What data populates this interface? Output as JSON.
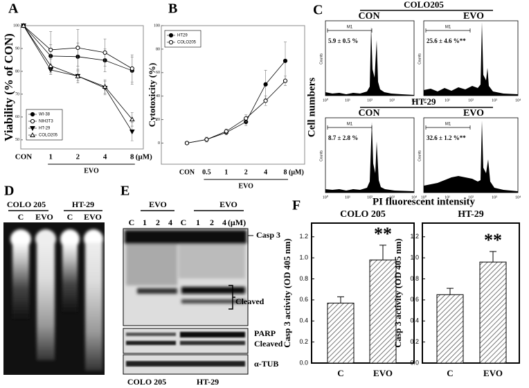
{
  "panel_labels": [
    "A",
    "B",
    "C",
    "D",
    "E",
    "F"
  ],
  "chart_data": [
    {
      "type": "line",
      "ylabel": "Viability (% of CON)",
      "xlabel": "EVO",
      "x_unit": "(μM)",
      "categories": [
        "CON",
        "1",
        "2",
        "4",
        "8"
      ],
      "ylim": [
        46,
        100
      ],
      "yticks": [
        50,
        60,
        70,
        80,
        90,
        100
      ],
      "legend": "lower left",
      "series": [
        {
          "name": "WI-38",
          "color": "#000000",
          "marker": "filled-circle",
          "values": [
            100,
            86.7,
            86.4,
            84.8,
            80.3
          ],
          "errors": [
            0,
            5,
            6,
            5,
            6
          ]
        },
        {
          "name": "NIH3T3",
          "color": "#000000",
          "marker": "open-circle",
          "values": [
            100,
            89.4,
            90.3,
            88.2,
            81.2
          ],
          "errors": [
            0,
            8,
            8,
            6,
            6
          ]
        },
        {
          "name": "HT-29",
          "color": "#000000",
          "marker": "filled-triangle-down",
          "values": [
            100,
            80.6,
            77.9,
            72.7,
            53.6
          ],
          "errors": [
            0,
            2,
            2,
            3,
            4
          ]
        },
        {
          "name": "COLO205",
          "color": "#000000",
          "marker": "open-triangle-up",
          "values": [
            100,
            82.4,
            77.9,
            73.3,
            59
          ],
          "errors": [
            0,
            3,
            3,
            3,
            3
          ]
        }
      ]
    },
    {
      "type": "line",
      "ylabel": "Cytotoxicity (%)",
      "xlabel": "EVO",
      "x_unit": "(μM)",
      "categories": [
        "CON",
        "0.5",
        "1",
        "2",
        "4",
        "8"
      ],
      "ylim": [
        -18,
        100
      ],
      "yticks": [
        0,
        20,
        40,
        60,
        80,
        100
      ],
      "legend": "upper left",
      "series": [
        {
          "name": "HT29",
          "color": "#000000",
          "marker": "filled-circle",
          "values": [
            0,
            3,
            9,
            18,
            50,
            70
          ],
          "errors": [
            0,
            2,
            2,
            3,
            12,
            16
          ]
        },
        {
          "name": "COLO205",
          "color": "#000000",
          "marker": "open-circle",
          "values": [
            0,
            3,
            10,
            21,
            36,
            53
          ],
          "errors": [
            0,
            2,
            2,
            3,
            4,
            4
          ]
        }
      ]
    },
    {
      "type": "bar",
      "title": "COLO 205",
      "ylabel": "Casp 3 activity (OD 405 nm)",
      "categories": [
        "C",
        "EVO"
      ],
      "values": [
        0.57,
        0.98
      ],
      "errors": [
        0.06,
        0.14
      ],
      "ylim": [
        0,
        1.33
      ],
      "yticks": [
        {
          "value": 0,
          "label": "0.0"
        },
        0.2,
        0.4,
        0.6,
        0.8,
        {
          "value": 1,
          "label": "1.0"
        },
        1.2
      ],
      "annotations": [
        {
          "category": "EVO",
          "text": "**"
        }
      ]
    },
    {
      "type": "bar",
      "title": "HT-29",
      "ylabel": "Casp 3 activity (OD 405 nm)",
      "categories": [
        "C",
        "EVO"
      ],
      "values": [
        0.65,
        0.96
      ],
      "errors": [
        0.06,
        0.1
      ],
      "ylim": [
        0,
        1.33
      ],
      "yticks": [
        {
          "value": 0,
          "label": "0.0"
        },
        0.2,
        0.4,
        0.6,
        0.8,
        {
          "value": 1,
          "label": "1.0"
        },
        1.2
      ],
      "annotations": [
        {
          "category": "EVO",
          "text": "**"
        }
      ]
    }
  ],
  "flow": {
    "titles": [
      "COLO205",
      "HT-29"
    ],
    "conditions": [
      "CON",
      "EVO"
    ],
    "gate": "M1",
    "counts": "Counts",
    "percentages": [
      "5.9 ± 0.5 %",
      "25.6 ± 4.6 %**",
      "8.7 ± 2.8 %",
      "32.6 ± 1.2 %**"
    ],
    "x_ticks": [
      "10⁰",
      "10¹",
      "10²",
      "10³",
      "10⁴"
    ],
    "ylabel": "Cell numbers",
    "xlabel": "PI fluorescent intensity"
  },
  "gel": {
    "groups": [
      "COLO 205",
      "HT-29"
    ],
    "lanes": [
      "C",
      "EVO",
      "C",
      "EVO"
    ]
  },
  "blot": {
    "treatment": "EVO",
    "lanes": [
      "C",
      "1",
      "2",
      "4",
      "C",
      "1",
      "2",
      "4"
    ],
    "unit": "(μM)",
    "bands": [
      "Casp 3",
      "Cleaved",
      "PARP",
      "Cleaved",
      "α-TUB"
    ],
    "groups": [
      "COLO 205",
      "HT-29"
    ]
  }
}
